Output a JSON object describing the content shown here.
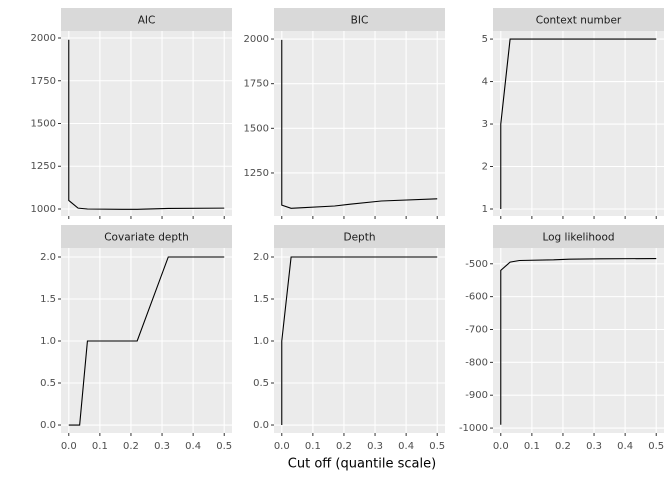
{
  "chart_data": [
    {
      "type": "line",
      "title": "AIC",
      "color": "#000000",
      "grid": true,
      "x": [
        0,
        0,
        0.03,
        0.06,
        0.17,
        0.22,
        0.32,
        0.5
      ],
      "values": [
        1990,
        1050,
        1005,
        1000,
        998,
        998,
        1003,
        1005
      ],
      "xlim": [
        -0.025,
        0.525
      ],
      "xticks": [
        0,
        0.1,
        0.2,
        0.3,
        0.4,
        0.5
      ],
      "ylim": [
        959,
        2041
      ],
      "yticks": [
        1000,
        1250,
        1500,
        1750,
        2000
      ]
    },
    {
      "type": "line",
      "title": "BIC",
      "color": "#000000",
      "grid": true,
      "x": [
        0,
        0,
        0.03,
        0.06,
        0.17,
        0.22,
        0.32,
        0.5
      ],
      "values": [
        1995,
        1070,
        1052,
        1055,
        1065,
        1075,
        1093,
        1105
      ],
      "xlim": [
        -0.025,
        0.525
      ],
      "xticks": [
        0,
        0.1,
        0.2,
        0.3,
        0.4,
        0.5
      ],
      "ylim": [
        1009,
        2045
      ],
      "yticks": [
        1250,
        1500,
        1750,
        2000
      ]
    },
    {
      "type": "line",
      "title": "Context number",
      "color": "#000000",
      "grid": true,
      "x": [
        0,
        0,
        0.03,
        0.06,
        0.17,
        0.22,
        0.32,
        0.5
      ],
      "values": [
        1,
        3,
        5,
        5,
        5,
        5,
        5,
        5
      ],
      "xlim": [
        -0.025,
        0.525
      ],
      "xticks": [
        0,
        0.1,
        0.2,
        0.3,
        0.4,
        0.5
      ],
      "ylim": [
        0.835,
        5.19
      ],
      "yticks": [
        1,
        2,
        3,
        4,
        5
      ]
    },
    {
      "type": "line",
      "title": "Covariate depth",
      "color": "#000000",
      "grid": true,
      "x": [
        0,
        0,
        0.035,
        0.06,
        0.17,
        0.22,
        0.32,
        0.5
      ],
      "values": [
        0,
        0,
        0,
        1,
        1,
        1,
        2,
        2
      ],
      "xlim": [
        -0.025,
        0.525
      ],
      "xticks": [
        {
          "value": 0,
          "label": "0.0"
        },
        0.1,
        0.2,
        0.3,
        0.4,
        0.5
      ],
      "ylim": [
        -0.095,
        2.107
      ],
      "yticks": [
        {
          "value": 0,
          "label": "0.0"
        },
        0.5,
        {
          "value": 1,
          "label": "1.0"
        },
        1.5,
        {
          "value": 2,
          "label": "2.0"
        }
      ]
    },
    {
      "type": "line",
      "title": "Depth",
      "color": "#000000",
      "grid": true,
      "x": [
        0,
        0,
        0.03,
        0.06,
        0.17,
        0.22,
        0.32,
        0.5
      ],
      "values": [
        0,
        1,
        2,
        2,
        2,
        2,
        2,
        2
      ],
      "xlim": [
        -0.025,
        0.525
      ],
      "xticks": [
        {
          "value": 0,
          "label": "0.0"
        },
        0.1,
        0.2,
        0.3,
        0.4,
        0.5
      ],
      "ylim": [
        -0.095,
        2.107
      ],
      "yticks": [
        {
          "value": 0,
          "label": "0.0"
        },
        0.5,
        {
          "value": 1,
          "label": "1.0"
        },
        1.5,
        {
          "value": 2,
          "label": "2.0"
        }
      ]
    },
    {
      "type": "line",
      "title": "Log likelihood",
      "color": "#000000",
      "grid": true,
      "x": [
        0,
        0,
        0.03,
        0.06,
        0.17,
        0.22,
        0.32,
        0.5
      ],
      "values": [
        -990,
        -520,
        -495,
        -490,
        -488,
        -486,
        -485,
        -484
      ],
      "xlim": [
        -0.025,
        0.525
      ],
      "xticks": [
        {
          "value": 0,
          "label": "0.0"
        },
        0.1,
        0.2,
        0.3,
        0.4,
        0.5
      ],
      "ylim": [
        -1015,
        -452
      ],
      "yticks": [
        -1000,
        -900,
        -800,
        -700,
        -600,
        -500
      ]
    }
  ],
  "x_label": "Cut off (quantile scale)"
}
